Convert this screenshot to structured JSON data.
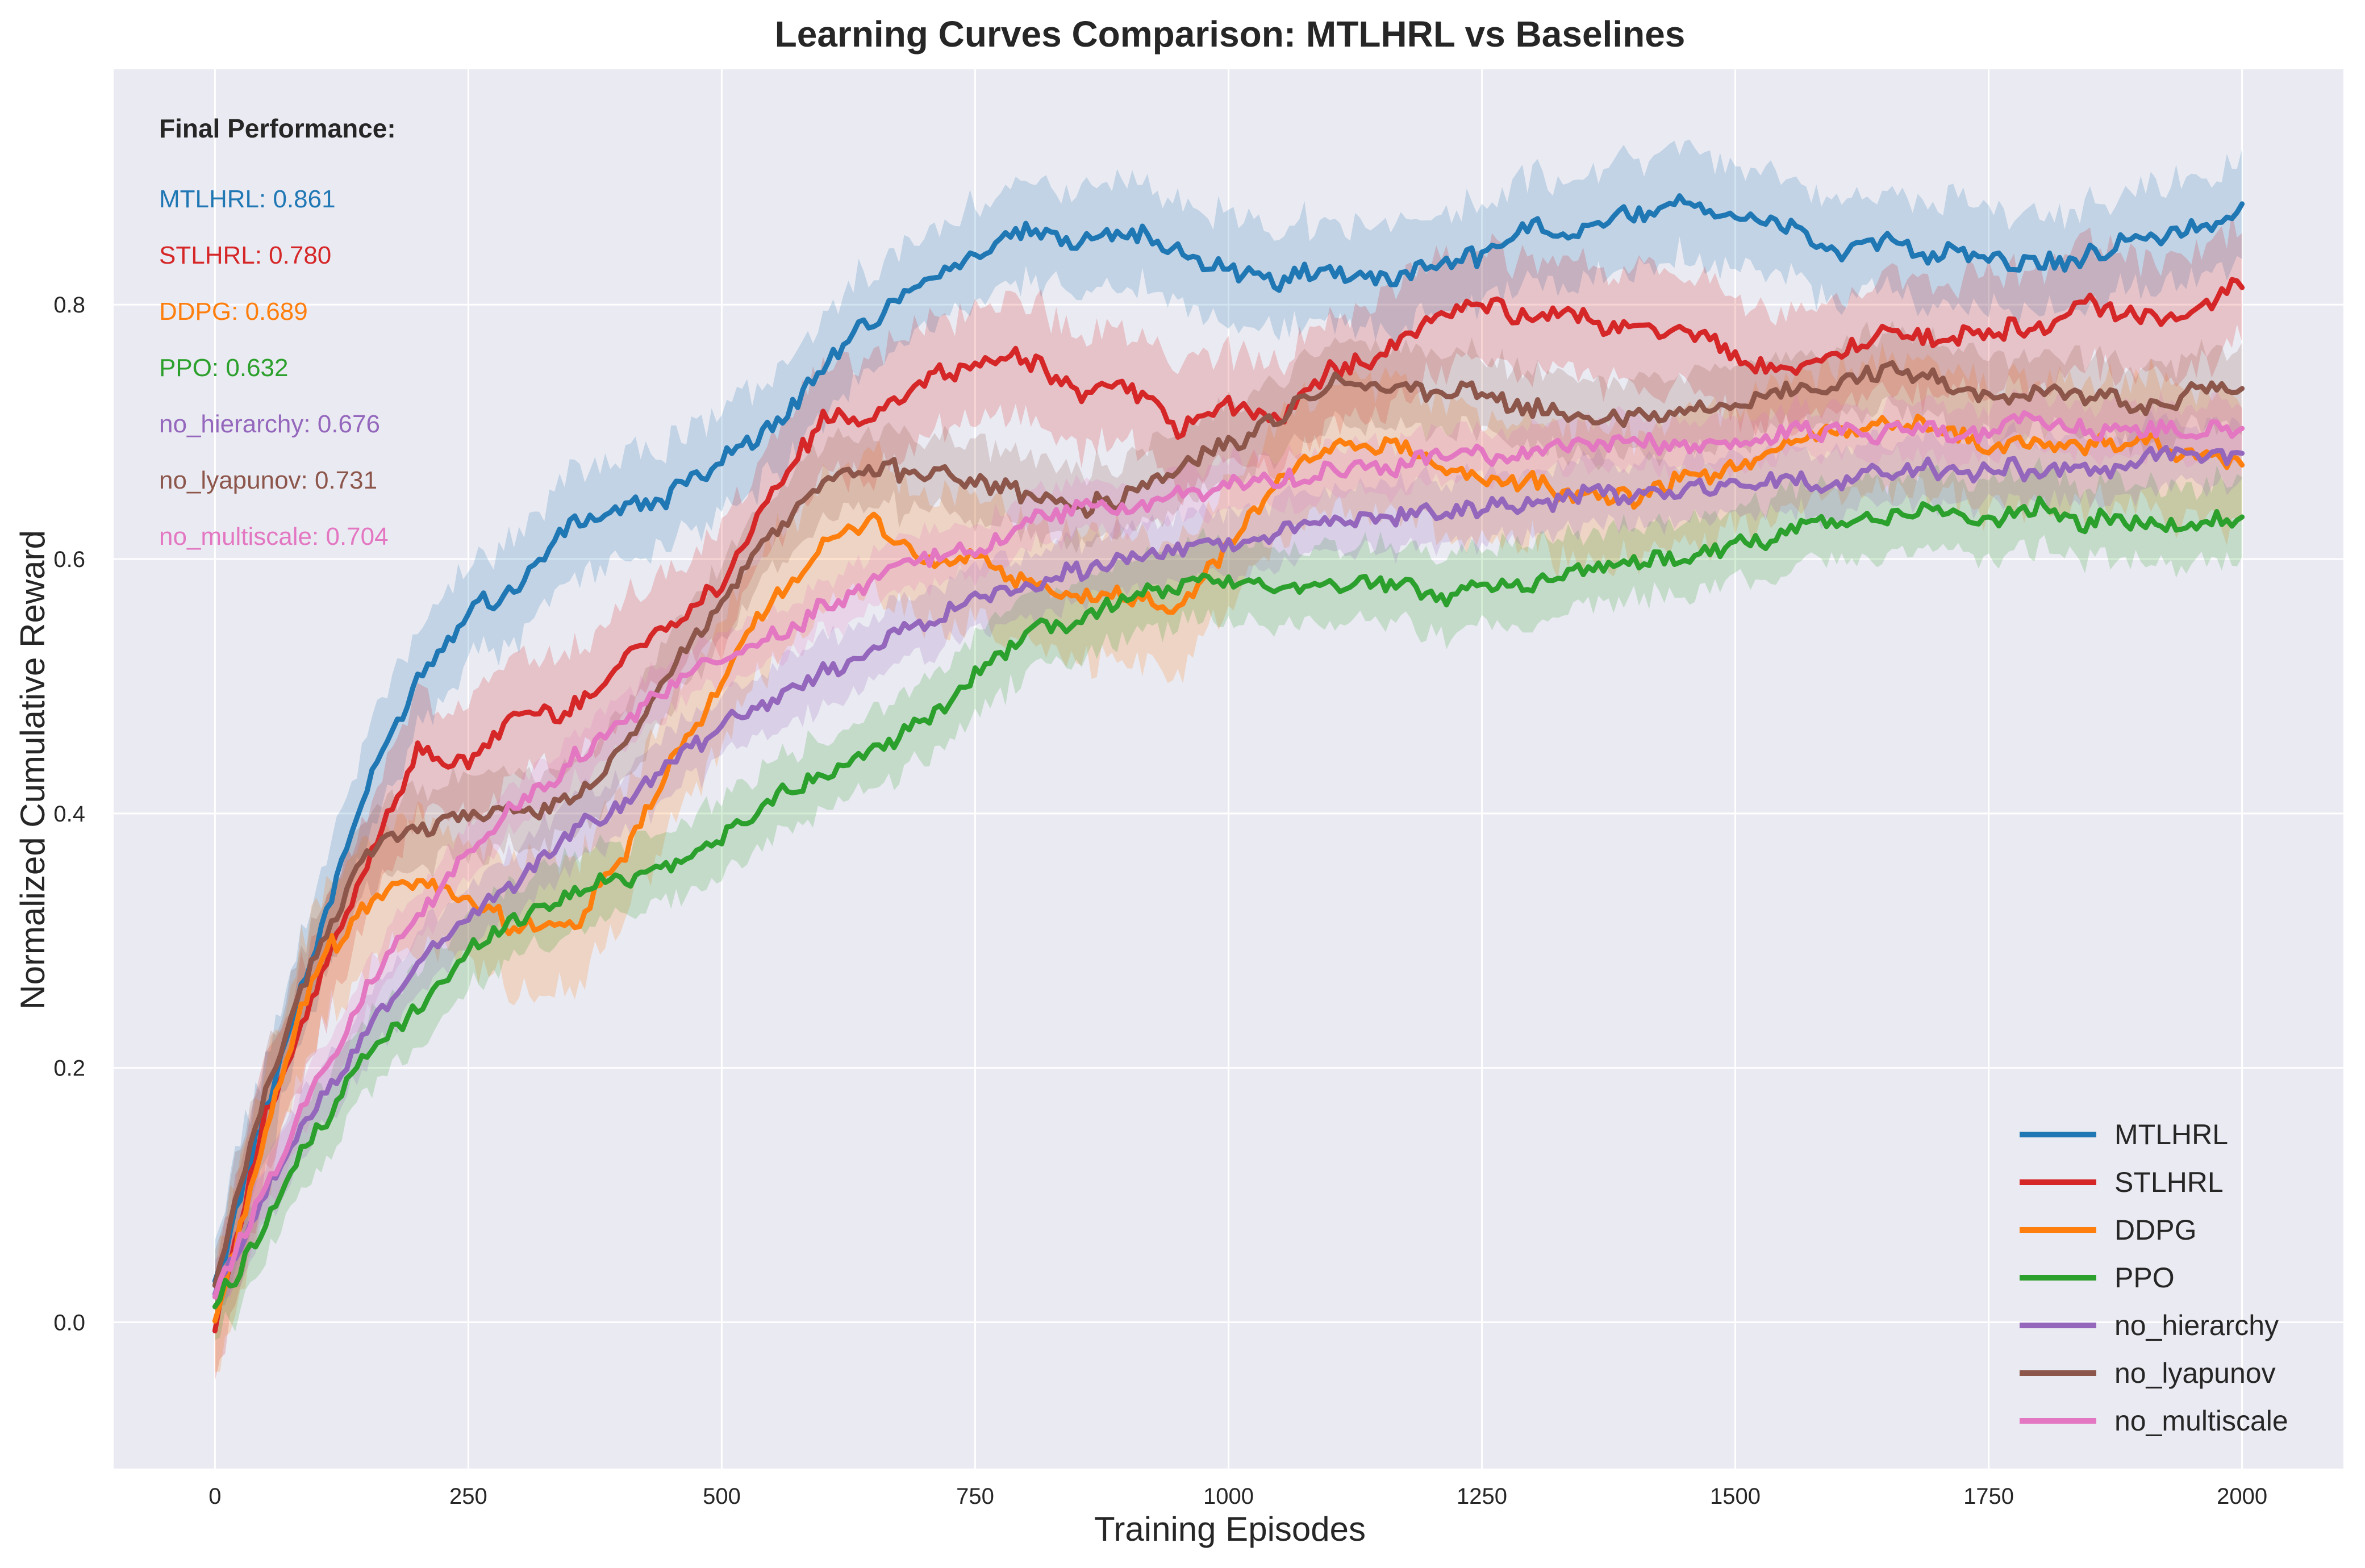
{
  "chart_data": {
    "type": "line",
    "title": "Learning Curves Comparison: MTLHRL vs Baselines",
    "xlabel": "Training Episodes",
    "ylabel": "Normalized Cumulative Reward",
    "xlim": [
      -100,
      2100
    ],
    "ylim": [
      -0.115,
      0.985
    ],
    "xticks": [
      0,
      250,
      500,
      750,
      1000,
      1250,
      1500,
      1750,
      2000
    ],
    "yticks": [
      0.0,
      0.2,
      0.4,
      0.6,
      0.8
    ],
    "xtick_labels": [
      "0",
      "250",
      "500",
      "750",
      "1000",
      "1250",
      "1500",
      "1750",
      "2000"
    ],
    "ytick_labels": [
      "0.0",
      "0.2",
      "0.4",
      "0.6",
      "0.8"
    ],
    "grid": true,
    "background": "#eaeaf2",
    "legend_position": "lower-right",
    "annotation": {
      "heading": "Final Performance:",
      "lines": [
        {
          "text": "MTLHRL: 0.861",
          "color": "#1f77b4"
        },
        {
          "text": "STLHRL: 0.780",
          "color": "#d62728"
        },
        {
          "text": "DDPG: 0.689",
          "color": "#ff7f0e"
        },
        {
          "text": "PPO: 0.632",
          "color": "#2ca02c"
        },
        {
          "text": "no_hierarchy: 0.676",
          "color": "#9467bd"
        },
        {
          "text": "no_lyapunov: 0.731",
          "color": "#8c564b"
        },
        {
          "text": "no_multiscale: 0.704",
          "color": "#e377c2"
        }
      ]
    },
    "x": [
      0,
      50,
      100,
      150,
      200,
      250,
      300,
      350,
      400,
      450,
      500,
      550,
      600,
      650,
      700,
      750,
      800,
      850,
      900,
      950,
      1000,
      1050,
      1100,
      1150,
      1200,
      1250,
      1300,
      1350,
      1400,
      1450,
      1500,
      1550,
      1600,
      1650,
      1700,
      1750,
      1800,
      1850,
      1900,
      1950,
      2000
    ],
    "series": [
      {
        "name": "MTLHRL",
        "color": "#1f77b4",
        "band": 0.04,
        "values": [
          0.03,
          0.17,
          0.3,
          0.42,
          0.51,
          0.56,
          0.58,
          0.63,
          0.64,
          0.65,
          0.68,
          0.7,
          0.75,
          0.79,
          0.82,
          0.84,
          0.86,
          0.85,
          0.86,
          0.84,
          0.83,
          0.82,
          0.83,
          0.82,
          0.83,
          0.84,
          0.86,
          0.86,
          0.87,
          0.88,
          0.87,
          0.86,
          0.84,
          0.85,
          0.84,
          0.84,
          0.83,
          0.84,
          0.85,
          0.86,
          0.87
        ]
      },
      {
        "name": "STLHRL",
        "color": "#d62728",
        "band": 0.045,
        "values": [
          0.0,
          0.16,
          0.26,
          0.36,
          0.45,
          0.44,
          0.48,
          0.48,
          0.52,
          0.55,
          0.58,
          0.65,
          0.71,
          0.71,
          0.74,
          0.75,
          0.76,
          0.73,
          0.74,
          0.7,
          0.72,
          0.71,
          0.75,
          0.76,
          0.79,
          0.8,
          0.79,
          0.79,
          0.78,
          0.78,
          0.76,
          0.75,
          0.76,
          0.78,
          0.77,
          0.78,
          0.78,
          0.8,
          0.79,
          0.79,
          0.82
        ]
      },
      {
        "name": "DDPG",
        "color": "#ff7f0e",
        "band": 0.05,
        "values": [
          0.0,
          0.15,
          0.28,
          0.33,
          0.35,
          0.33,
          0.31,
          0.31,
          0.36,
          0.44,
          0.5,
          0.57,
          0.61,
          0.63,
          0.6,
          0.6,
          0.58,
          0.57,
          0.57,
          0.56,
          0.61,
          0.66,
          0.69,
          0.69,
          0.68,
          0.66,
          0.66,
          0.65,
          0.65,
          0.66,
          0.67,
          0.69,
          0.7,
          0.71,
          0.7,
          0.69,
          0.69,
          0.69,
          0.69,
          0.68,
          0.68
        ]
      },
      {
        "name": "PPO",
        "color": "#2ca02c",
        "band": 0.03,
        "values": [
          0.01,
          0.08,
          0.15,
          0.21,
          0.25,
          0.29,
          0.32,
          0.34,
          0.35,
          0.36,
          0.38,
          0.41,
          0.43,
          0.45,
          0.47,
          0.51,
          0.54,
          0.55,
          0.57,
          0.58,
          0.58,
          0.58,
          0.58,
          0.58,
          0.57,
          0.58,
          0.58,
          0.59,
          0.6,
          0.6,
          0.61,
          0.62,
          0.63,
          0.63,
          0.64,
          0.63,
          0.64,
          0.63,
          0.63,
          0.63,
          0.63
        ]
      },
      {
        "name": "no_hierarchy",
        "color": "#9467bd",
        "band": 0.025,
        "values": [
          0.02,
          0.1,
          0.17,
          0.23,
          0.28,
          0.32,
          0.35,
          0.38,
          0.41,
          0.44,
          0.47,
          0.49,
          0.51,
          0.53,
          0.55,
          0.57,
          0.58,
          0.59,
          0.6,
          0.61,
          0.61,
          0.62,
          0.63,
          0.63,
          0.64,
          0.64,
          0.64,
          0.65,
          0.65,
          0.65,
          0.66,
          0.66,
          0.66,
          0.67,
          0.67,
          0.67,
          0.67,
          0.67,
          0.68,
          0.68,
          0.68
        ]
      },
      {
        "name": "no_lyapunov",
        "color": "#8c564b",
        "band": 0.03,
        "values": [
          0.03,
          0.18,
          0.29,
          0.37,
          0.39,
          0.4,
          0.4,
          0.41,
          0.45,
          0.51,
          0.57,
          0.62,
          0.66,
          0.67,
          0.67,
          0.66,
          0.65,
          0.64,
          0.65,
          0.67,
          0.69,
          0.71,
          0.74,
          0.74,
          0.73,
          0.73,
          0.72,
          0.71,
          0.71,
          0.72,
          0.72,
          0.73,
          0.74,
          0.75,
          0.74,
          0.73,
          0.73,
          0.73,
          0.72,
          0.73,
          0.74
        ]
      },
      {
        "name": "no_multiscale",
        "color": "#e377c2",
        "band": 0.02,
        "values": [
          0.02,
          0.11,
          0.19,
          0.26,
          0.32,
          0.37,
          0.41,
          0.44,
          0.47,
          0.5,
          0.52,
          0.54,
          0.56,
          0.58,
          0.6,
          0.61,
          0.63,
          0.64,
          0.64,
          0.65,
          0.66,
          0.66,
          0.67,
          0.67,
          0.68,
          0.68,
          0.68,
          0.69,
          0.69,
          0.69,
          0.69,
          0.7,
          0.7,
          0.7,
          0.7,
          0.7,
          0.71,
          0.7,
          0.7,
          0.7,
          0.7
        ]
      }
    ]
  }
}
